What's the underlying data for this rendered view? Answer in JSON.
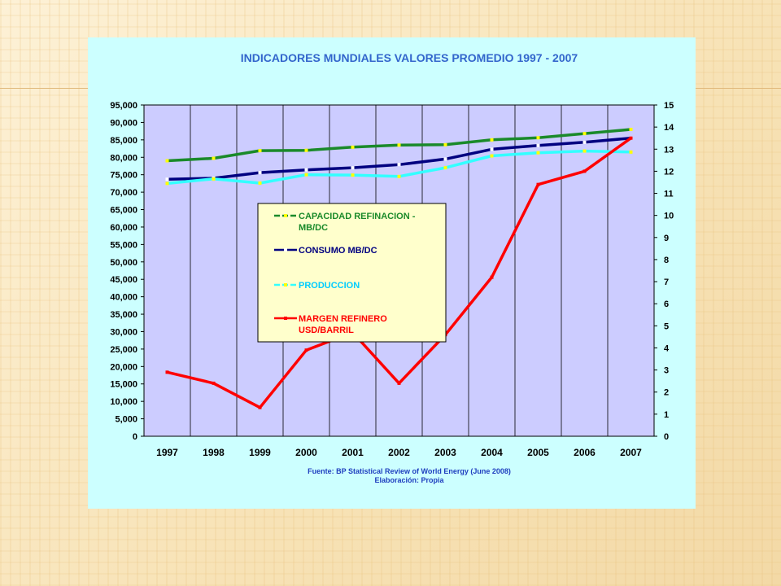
{
  "slide": {
    "background_color": "#fbecc9",
    "accent_line_color": "#e0b87a"
  },
  "chart_data": {
    "type": "line",
    "title": "INDICADORES MUNDIALES VALORES PROMEDIO 1997 - 2007",
    "title_color": "#3366cc",
    "categories": [
      "1997",
      "1998",
      "1999",
      "2000",
      "2001",
      "2002",
      "2003",
      "2004",
      "2005",
      "2006",
      "2007"
    ],
    "y_left": {
      "range": [
        0,
        95000
      ],
      "step": 5000,
      "ticks": [
        "0",
        "5,000",
        "10,000",
        "15,000",
        "20,000",
        "25,000",
        "30,000",
        "35,000",
        "40,000",
        "45,000",
        "50,000",
        "55,000",
        "60,000",
        "65,000",
        "70,000",
        "75,000",
        "80,000",
        "85,000",
        "90,000",
        "95,000"
      ]
    },
    "y_right": {
      "range": [
        0,
        15
      ],
      "step": 1,
      "ticks": [
        "0",
        "1",
        "2",
        "3",
        "4",
        "5",
        "6",
        "7",
        "8",
        "9",
        "10",
        "11",
        "12",
        "13",
        "14",
        "15"
      ]
    },
    "plot_background": "#ccccff",
    "grid": "vertical",
    "legend_position": "center-left",
    "legend_background": "#ffffcc",
    "series": [
      {
        "name": "CAPACIDAD REFINACION - MB/DC",
        "legend_lines": [
          "CAPACIDAD REFINACION -",
          "MB/DC"
        ],
        "axis": "left",
        "color": "#1a8a2a",
        "legend_color": "#1a8a2a",
        "marker_color": "#ffff00",
        "values": [
          79000,
          79700,
          81900,
          82000,
          82900,
          83500,
          83600,
          85000,
          85600,
          86800,
          88000
        ]
      },
      {
        "name": "CONSUMO MB/DC",
        "legend_lines": [
          "CONSUMO MB/DC"
        ],
        "axis": "left",
        "color": "#000080",
        "legend_color": "#000080",
        "marker_color": "#ffffff",
        "values": [
          73700,
          74000,
          75600,
          76400,
          77000,
          77900,
          79500,
          82300,
          83400,
          84300,
          85500
        ]
      },
      {
        "name": "PRODUCCION",
        "legend_lines": [
          "PRODUCCION"
        ],
        "axis": "left",
        "color": "#33ffff",
        "legend_color": "#00ccff",
        "marker_color": "#ffff00",
        "values": [
          72500,
          73800,
          72600,
          75000,
          74900,
          74500,
          77000,
          80400,
          81300,
          81800,
          81500
        ]
      },
      {
        "name": "MARGEN REFINERO USD/BARRIL",
        "legend_lines": [
          "MARGEN REFINERO",
          "USD/BARRIL"
        ],
        "axis": "right",
        "color": "#ff0000",
        "legend_color": "#ff0000",
        "marker_color": "#ff0000",
        "values": [
          2.9,
          2.4,
          1.3,
          3.9,
          4.7,
          2.4,
          4.6,
          7.2,
          11.4,
          12.0,
          13.5
        ]
      }
    ],
    "source": [
      "Fuente: BP  Statistical Review of World Energy (June 2008)",
      "Elaboración: Propia"
    ],
    "source_color": "#1f3fbf"
  }
}
